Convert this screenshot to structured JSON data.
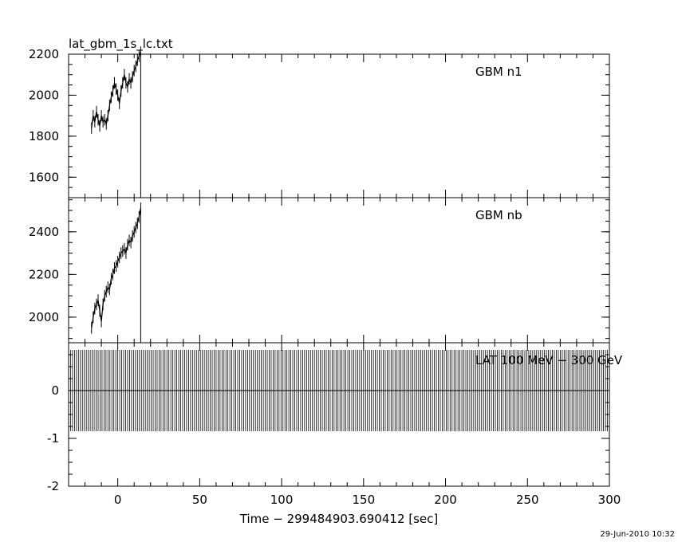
{
  "title": "lat_gbm_1s_lc.txt",
  "timestamp": "29-Jun-2010 10:32",
  "chart_data": {
    "type": "line",
    "xlabel": "Time − 299484903.690412 [sec]",
    "xlim": [
      -30,
      300
    ],
    "xticks": [
      0,
      50,
      100,
      150,
      200,
      250,
      300
    ],
    "panels": [
      {
        "id": "gbm-n1",
        "label": "GBM n1",
        "ylim": [
          1500,
          2200
        ],
        "yticks": [
          1600,
          1800,
          2000,
          2200
        ],
        "series": [
          {
            "x": [
              -16,
              -15,
              -14,
              -13,
              -12,
              -11,
              -10,
              -9,
              -8,
              -7,
              -6,
              -5,
              -4,
              -3,
              -2,
              -1,
              0,
              1,
              2,
              3,
              4,
              5,
              6,
              7,
              8,
              9,
              10,
              11,
              12,
              13,
              14
            ],
            "y": [
              1840,
              1900,
              1870,
              1920,
              1880,
              1850,
              1900,
              1870,
              1880,
              1860,
              1900,
              1950,
              1990,
              2020,
              2060,
              2030,
              2000,
              1960,
              2020,
              2060,
              2100,
              2060,
              2040,
              2080,
              2060,
              2090,
              2120,
              2140,
              2170,
              2190,
              2210
            ]
          }
        ],
        "spike": {
          "x": 14,
          "y": [
            2210,
            1500
          ]
        }
      },
      {
        "id": "gbm-nb",
        "label": "GBM nb",
        "ylim": [
          1880,
          2560
        ],
        "yticks": [
          2000,
          2200,
          2400
        ],
        "series": [
          {
            "x": [
              -16,
              -15,
              -14,
              -13,
              -12,
              -11,
              -10,
              -9,
              -8,
              -7,
              -6,
              -5,
              -4,
              -3,
              -2,
              -1,
              0,
              1,
              2,
              3,
              4,
              5,
              6,
              7,
              8,
              9,
              10,
              11,
              12,
              13,
              14
            ],
            "y": [
              1950,
              2000,
              2040,
              2060,
              2080,
              2030,
              1980,
              2060,
              2100,
              2120,
              2140,
              2130,
              2180,
              2200,
              2230,
              2240,
              2260,
              2280,
              2300,
              2310,
              2320,
              2300,
              2340,
              2360,
              2350,
              2380,
              2400,
              2420,
              2440,
              2470,
              2510
            ]
          }
        ],
        "spike": {
          "x": 14,
          "y": [
            2510,
            1880
          ]
        }
      },
      {
        "id": "lat",
        "label": "LAT 100 MeV − 300 GeV",
        "ylim": [
          -2,
          1
        ],
        "yticks": [
          -2,
          -1,
          0
        ],
        "baseline": 0,
        "band": [
          -0.85,
          0.85
        ]
      }
    ]
  }
}
